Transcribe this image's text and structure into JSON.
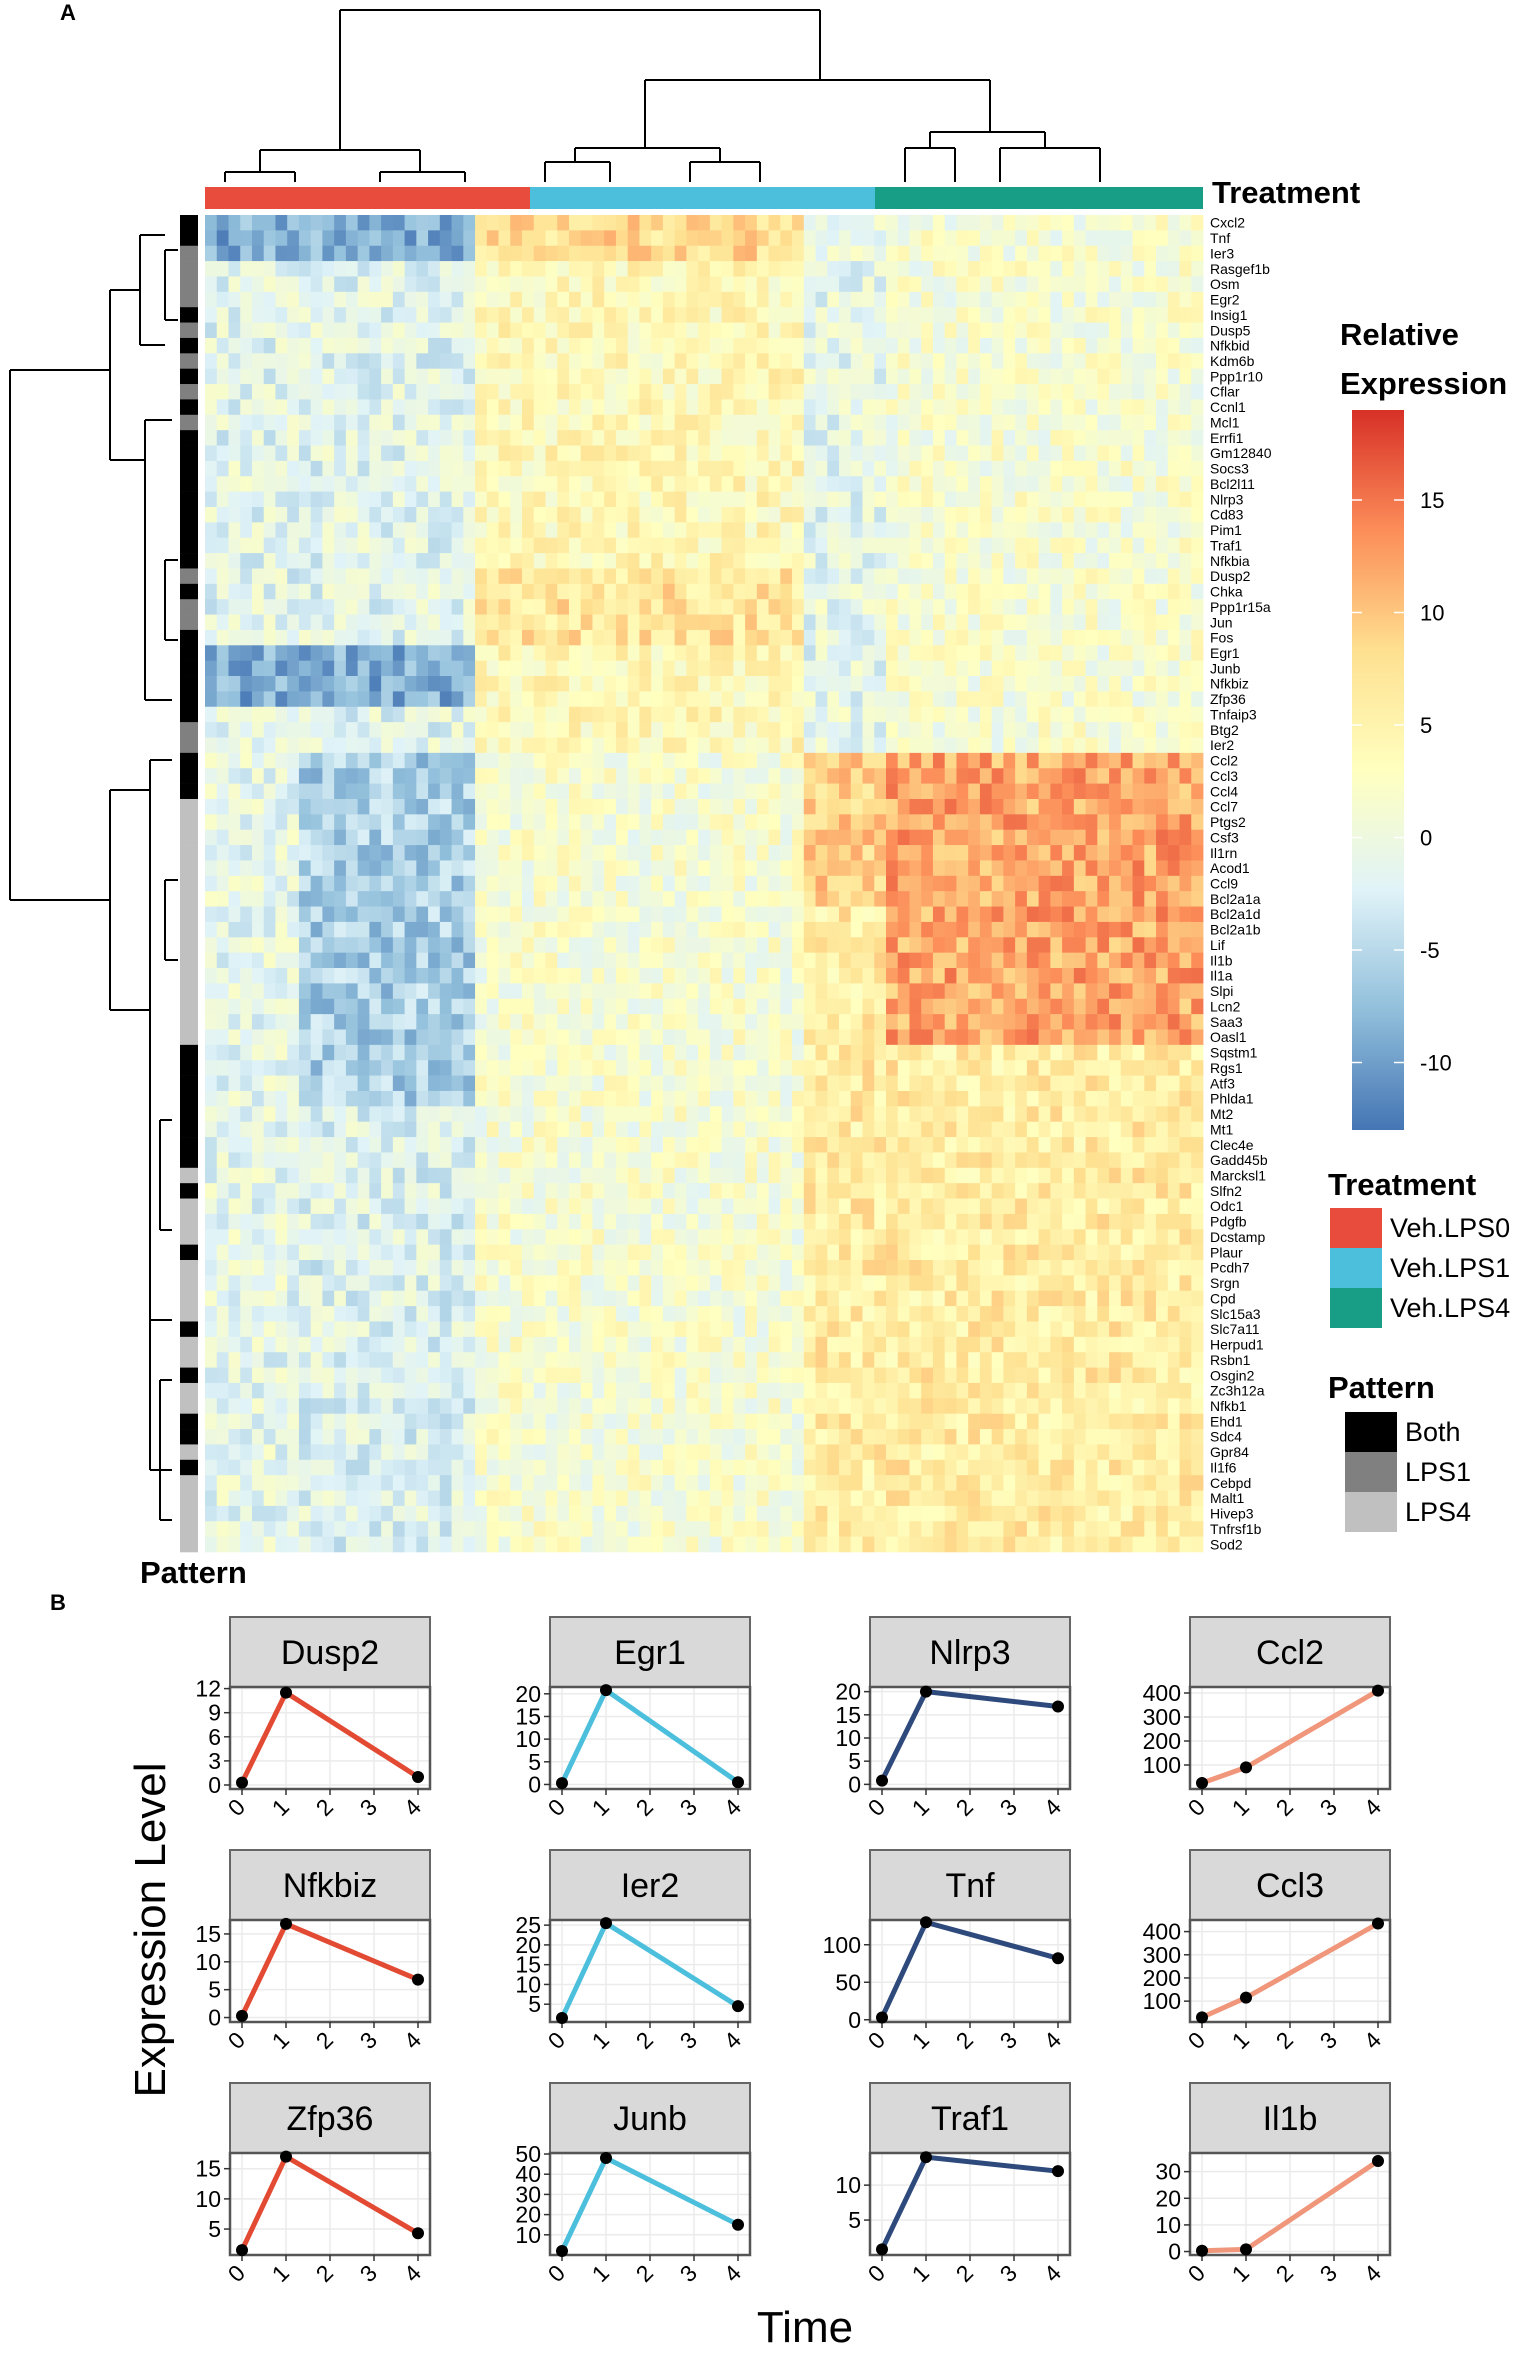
{
  "panel_a": {
    "label": "A",
    "treatment_label": "Treatment",
    "pattern_label": "Pattern",
    "colorbar_title": [
      "Relative",
      "Expression"
    ],
    "colorbar_ticks": [
      15,
      10,
      5,
      0,
      -5,
      -10
    ],
    "colorbar_range": [
      -13,
      19
    ],
    "colorbar_stops": [
      "#4575b4",
      "#91bfdb",
      "#e0f3f8",
      "#ffffbf",
      "#fee090",
      "#fc8d59",
      "#d73027"
    ],
    "treatment_legend": {
      "title": "Treatment",
      "items": [
        {
          "label": "Veh.LPS0",
          "color": "#e84c3d"
        },
        {
          "label": "Veh.LPS1",
          "color": "#4bbfdc"
        },
        {
          "label": "Veh.LPS4",
          "color": "#189d86"
        }
      ]
    },
    "pattern_legend": {
      "title": "Pattern",
      "items": [
        {
          "label": "Both",
          "color": "#000000"
        },
        {
          "label": "LPS1",
          "color": "#808080"
        },
        {
          "label": "LPS4",
          "color": "#c0c0c0"
        }
      ]
    },
    "genes": [
      "Cxcl2",
      "Tnf",
      "Ier3",
      "Rasgef1b",
      "Osm",
      "Egr2",
      "Insig1",
      "Dusp5",
      "Nfkbid",
      "Kdm6b",
      "Ppp1r10",
      "Cflar",
      "Ccnl1",
      "Mcl1",
      "Errfi1",
      "Gm12840",
      "Socs3",
      "Bcl2l11",
      "Nlrp3",
      "Cd83",
      "Pim1",
      "Traf1",
      "Nfkbia",
      "Dusp2",
      "Chka",
      "Ppp1r15a",
      "Jun",
      "Fos",
      "Egr1",
      "Junb",
      "Nfkbiz",
      "Zfp36",
      "Tnfaip3",
      "Btg2",
      "Ier2",
      "Ccl2",
      "Ccl3",
      "Ccl4",
      "Ccl7",
      "Ptgs2",
      "Csf3",
      "Il1rn",
      "Acod1",
      "Ccl9",
      "Bcl2a1a",
      "Bcl2a1d",
      "Bcl2a1b",
      "Lif",
      "Il1b",
      "Il1a",
      "Slpi",
      "Lcn2",
      "Saa3",
      "Oasl1",
      "Sqstm1",
      "Rgs1",
      "Atf3",
      "Phlda1",
      "Mt2",
      "Mt1",
      "Clec4e",
      "Gadd45b",
      "Marcksl1",
      "Slfn2",
      "Odc1",
      "Pdgfb",
      "Dcstamp",
      "Plaur",
      "Pcdh7",
      "Srgn",
      "Cpd",
      "Slc15a3",
      "Slc7a11",
      "Herpud1",
      "Rsbn1",
      "Osgin2",
      "Zc3h12a",
      "Nfkb1",
      "Ehd1",
      "Sdc4",
      "Gpr84",
      "Il1f6",
      "Cebpd",
      "Malt1",
      "Hivep3",
      "Tnfrsf1b",
      "Sod2"
    ],
    "gene_patterns": [
      "Both",
      "Both",
      "LPS1",
      "LPS1",
      "LPS1",
      "LPS1",
      "Both",
      "LPS1",
      "Both",
      "LPS1",
      "Both",
      "LPS1",
      "Both",
      "LPS1",
      "Both",
      "Both",
      "Both",
      "Both",
      "Both",
      "Both",
      "Both",
      "Both",
      "Both",
      "LPS1",
      "Both",
      "LPS1",
      "LPS1",
      "Both",
      "Both",
      "Both",
      "Both",
      "Both",
      "Both",
      "LPS1",
      "LPS1",
      "Both",
      "Both",
      "Both",
      "LPS4",
      "LPS4",
      "LPS4",
      "LPS4",
      "LPS4",
      "LPS4",
      "LPS4",
      "LPS4",
      "LPS4",
      "LPS4",
      "LPS4",
      "LPS4",
      "LPS4",
      "LPS4",
      "LPS4",
      "LPS4",
      "Both",
      "Both",
      "Both",
      "Both",
      "Both",
      "Both",
      "Both",
      "Both",
      "LPS4",
      "Both",
      "LPS4",
      "LPS4",
      "LPS4",
      "Both",
      "LPS4",
      "LPS4",
      "LPS4",
      "LPS4",
      "Both",
      "LPS4",
      "LPS4",
      "Both",
      "LPS4",
      "LPS4",
      "Both",
      "Both",
      "LPS4",
      "Both",
      "LPS4",
      "LPS4",
      "LPS4",
      "LPS4",
      "LPS4"
    ]
  },
  "panel_b": {
    "label": "B",
    "ylabel": "Expression Level",
    "xlabel": "Time",
    "panel_colors": {
      "c1": "#e34a33",
      "c2": "#4bbfdc",
      "c3": "#2e4a7c",
      "c4": "#f0967a"
    }
  },
  "chart_data": {
    "type": "line",
    "x": [
      0,
      1,
      4
    ],
    "x_ticks": [
      0,
      1,
      2,
      3,
      4
    ],
    "xlabel": "Time",
    "ylabel": "Expression Level",
    "panels": [
      {
        "name": "Dusp2",
        "values": [
          0.3,
          11.5,
          1.0
        ],
        "yticks": [
          0,
          3,
          6,
          9,
          12
        ],
        "ylim": [
          -0.5,
          12.2
        ],
        "color_key": "c1"
      },
      {
        "name": "Egr1",
        "values": [
          0.3,
          20.8,
          0.5
        ],
        "yticks": [
          0,
          5,
          10,
          15,
          20
        ],
        "ylim": [
          -1,
          21.5
        ],
        "color_key": "c2"
      },
      {
        "name": "Nlrp3",
        "values": [
          0.8,
          20.0,
          16.8
        ],
        "yticks": [
          0,
          5,
          10,
          15,
          20
        ],
        "ylim": [
          -1,
          21
        ],
        "color_key": "c3"
      },
      {
        "name": "Ccl2",
        "values": [
          25,
          90,
          410
        ],
        "yticks": [
          100,
          200,
          300,
          400
        ],
        "ylim": [
          0,
          425
        ],
        "color_key": "c4"
      },
      {
        "name": "Nfkbiz",
        "values": [
          0.3,
          16.8,
          6.8
        ],
        "yticks": [
          0,
          5,
          10,
          15
        ],
        "ylim": [
          -0.8,
          17.5
        ],
        "color_key": "c1"
      },
      {
        "name": "Ier2",
        "values": [
          1.5,
          25.5,
          4.5
        ],
        "yticks": [
          5,
          10,
          15,
          20,
          25
        ],
        "ylim": [
          0.5,
          26.3
        ],
        "color_key": "c2"
      },
      {
        "name": "Tnf",
        "values": [
          3,
          130,
          82
        ],
        "yticks": [
          0,
          50,
          100
        ],
        "ylim": [
          -3,
          133
        ],
        "color_key": "c3"
      },
      {
        "name": "Ccl3",
        "values": [
          30,
          115,
          435
        ],
        "yticks": [
          100,
          200,
          300,
          400
        ],
        "ylim": [
          10,
          450
        ],
        "color_key": "c4"
      },
      {
        "name": "Zfp36",
        "values": [
          1.5,
          17.0,
          4.3
        ],
        "yticks": [
          5,
          10,
          15
        ],
        "ylim": [
          0.7,
          17.6
        ],
        "color_key": "c1"
      },
      {
        "name": "Junb",
        "values": [
          2,
          48,
          15
        ],
        "yticks": [
          10,
          20,
          30,
          40,
          50
        ],
        "ylim": [
          0,
          50.5
        ],
        "color_key": "c2"
      },
      {
        "name": "Traf1",
        "values": [
          0.8,
          14.0,
          12.0
        ],
        "yticks": [
          5,
          10
        ],
        "ylim": [
          0,
          14.6
        ],
        "color_key": "c3"
      },
      {
        "name": "Il1b",
        "values": [
          0.3,
          0.8,
          34.0
        ],
        "yticks": [
          0,
          10,
          20,
          30
        ],
        "ylim": [
          -1.3,
          37
        ],
        "color_key": "c4"
      }
    ]
  }
}
